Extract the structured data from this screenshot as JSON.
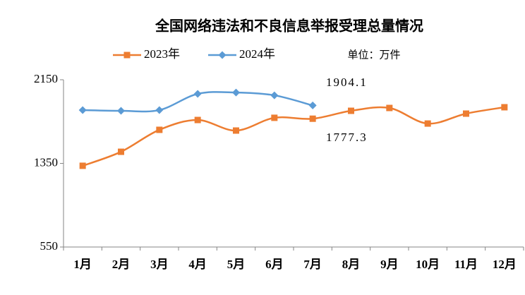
{
  "chart_data": {
    "type": "line",
    "title": "全国网络违法和不良信息举报受理总量情况",
    "unit_note": "单位：万件",
    "categories": [
      "1月",
      "2月",
      "3月",
      "4月",
      "5月",
      "6月",
      "7月",
      "8月",
      "9月",
      "10月",
      "11月",
      "12月"
    ],
    "series": [
      {
        "name": "2023年",
        "color": "#ed7d31",
        "marker": "square",
        "values": [
          1327,
          1461,
          1671,
          1765,
          1664,
          1786,
          1777.3,
          1853,
          1880,
          1731,
          1826,
          1887
        ]
      },
      {
        "name": "2024年",
        "color": "#5b9bd5",
        "marker": "diamond",
        "values": [
          1860,
          1853,
          1860,
          2015,
          2028,
          2001,
          1904.1,
          null,
          null,
          null,
          null,
          null
        ]
      }
    ],
    "ylim": [
      550,
      2150
    ],
    "yticks": [
      550,
      1350,
      2150
    ],
    "grid": false,
    "legend": "top",
    "smooth": true
  }
}
